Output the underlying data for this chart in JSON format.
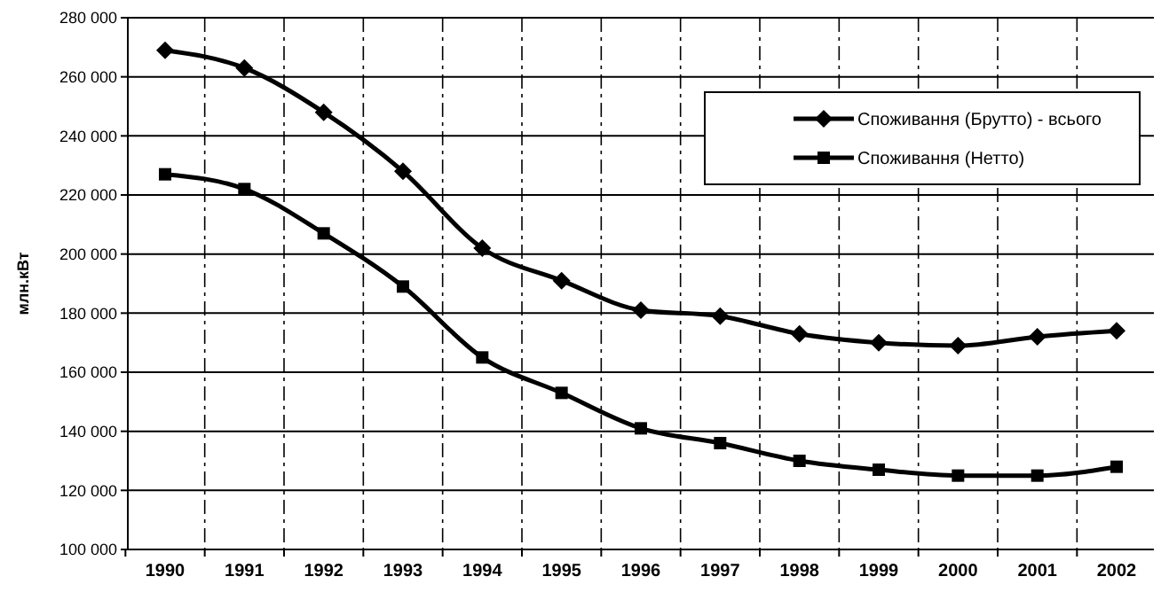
{
  "chart_data": {
    "type": "line",
    "ylabel": "млн.кВт",
    "categories": [
      "1990",
      "1991",
      "1992",
      "1993",
      "1994",
      "1995",
      "1996",
      "1997",
      "1998",
      "1999",
      "2000",
      "2001",
      "2002"
    ],
    "series": [
      {
        "name": "Споживання (Брутто) - всього",
        "color": "#000000",
        "marker": "diamond",
        "values": [
          269000,
          263000,
          248000,
          228000,
          202000,
          191000,
          181000,
          179000,
          173000,
          170000,
          169000,
          172000,
          174000
        ]
      },
      {
        "name": "Споживання (Нетто)",
        "color": "#000000",
        "marker": "square",
        "values": [
          227000,
          222000,
          207000,
          189000,
          165000,
          153000,
          141000,
          136000,
          130000,
          127000,
          125000,
          125000,
          128000
        ]
      }
    ],
    "ylim": [
      100000,
      280000
    ],
    "yticks": [
      {
        "value": 100000,
        "label": "100 000"
      },
      {
        "value": 120000,
        "label": "120 000"
      },
      {
        "value": 140000,
        "label": "140 000"
      },
      {
        "value": 160000,
        "label": "160 000"
      },
      {
        "value": 180000,
        "label": "180 000"
      },
      {
        "value": 200000,
        "label": "200 000"
      },
      {
        "value": 220000,
        "label": "220 000"
      },
      {
        "value": 240000,
        "label": "240 000"
      },
      {
        "value": 260000,
        "label": "260 000"
      },
      {
        "value": 280000,
        "label": "280 000"
      }
    ],
    "grid": true,
    "legend": "top right",
    "line_style": "solid"
  }
}
